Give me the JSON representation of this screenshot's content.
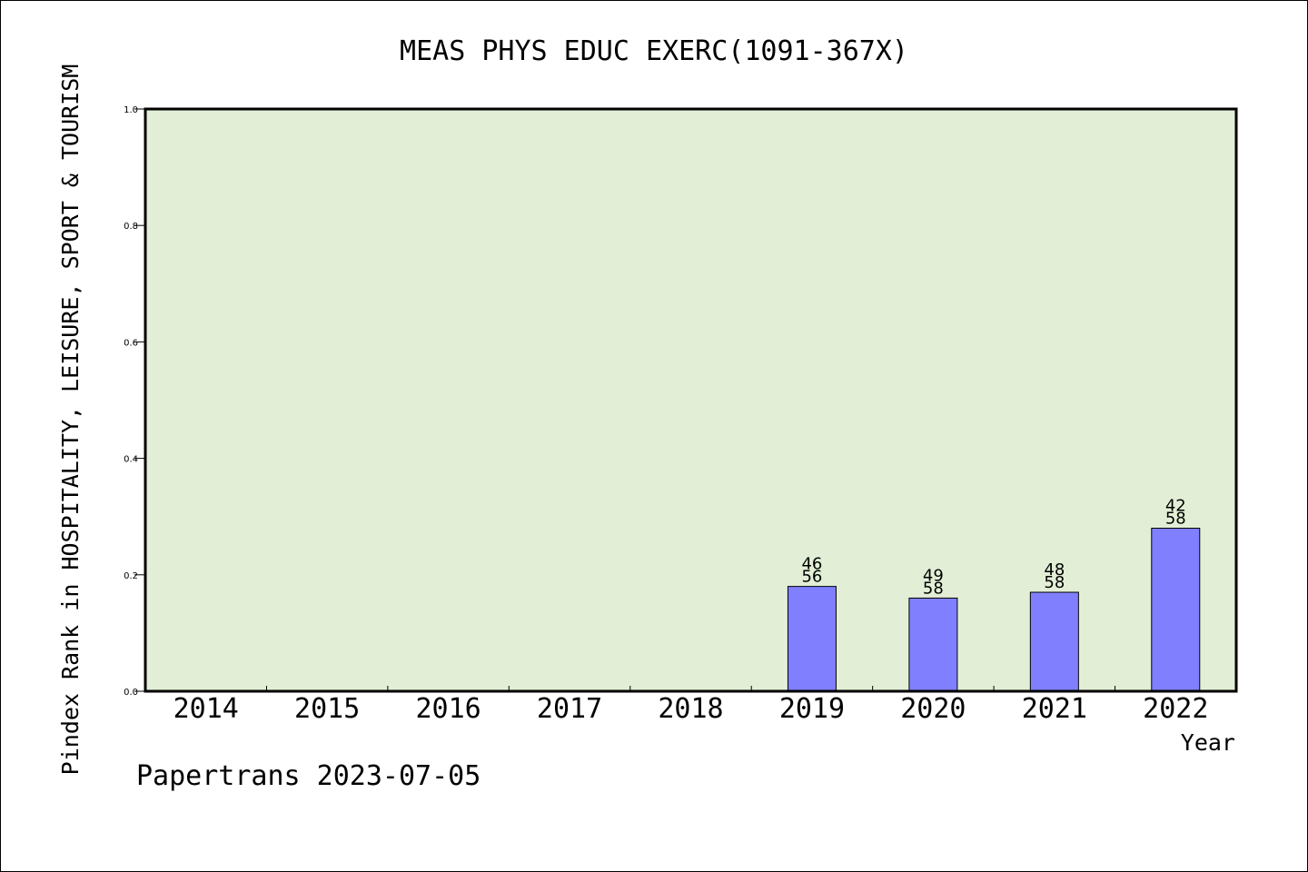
{
  "chart_data": {
    "type": "bar",
    "title": "MEAS PHYS EDUC EXERC(1091-367X)",
    "xlabel": "Year",
    "ylabel": "Pindex Rank in HOSPITALITY, LEISURE, SPORT & TOURISM",
    "ylim": [
      0,
      1.0
    ],
    "yticks": [
      "0.0",
      "0.2",
      "0.4",
      "0.6",
      "0.8",
      "1.0"
    ],
    "categories": [
      "2014",
      "2015",
      "2016",
      "2017",
      "2018",
      "2019",
      "2020",
      "2021",
      "2022"
    ],
    "values": [
      null,
      null,
      null,
      null,
      null,
      0.18,
      0.16,
      0.17,
      0.28
    ],
    "rank_labels": [
      "",
      "",
      "",
      "",
      "",
      "46",
      "49",
      "48",
      "42"
    ],
    "total_labels": [
      "",
      "",
      "",
      "",
      "",
      "56",
      "58",
      "58",
      "58"
    ],
    "grid": false,
    "colors": {
      "plot_background": "#e2efd6",
      "bar_fill": "#8080ff",
      "bar_stroke": "#000000"
    }
  },
  "footer": {
    "credit": "Papertrans 2023-07-05"
  }
}
